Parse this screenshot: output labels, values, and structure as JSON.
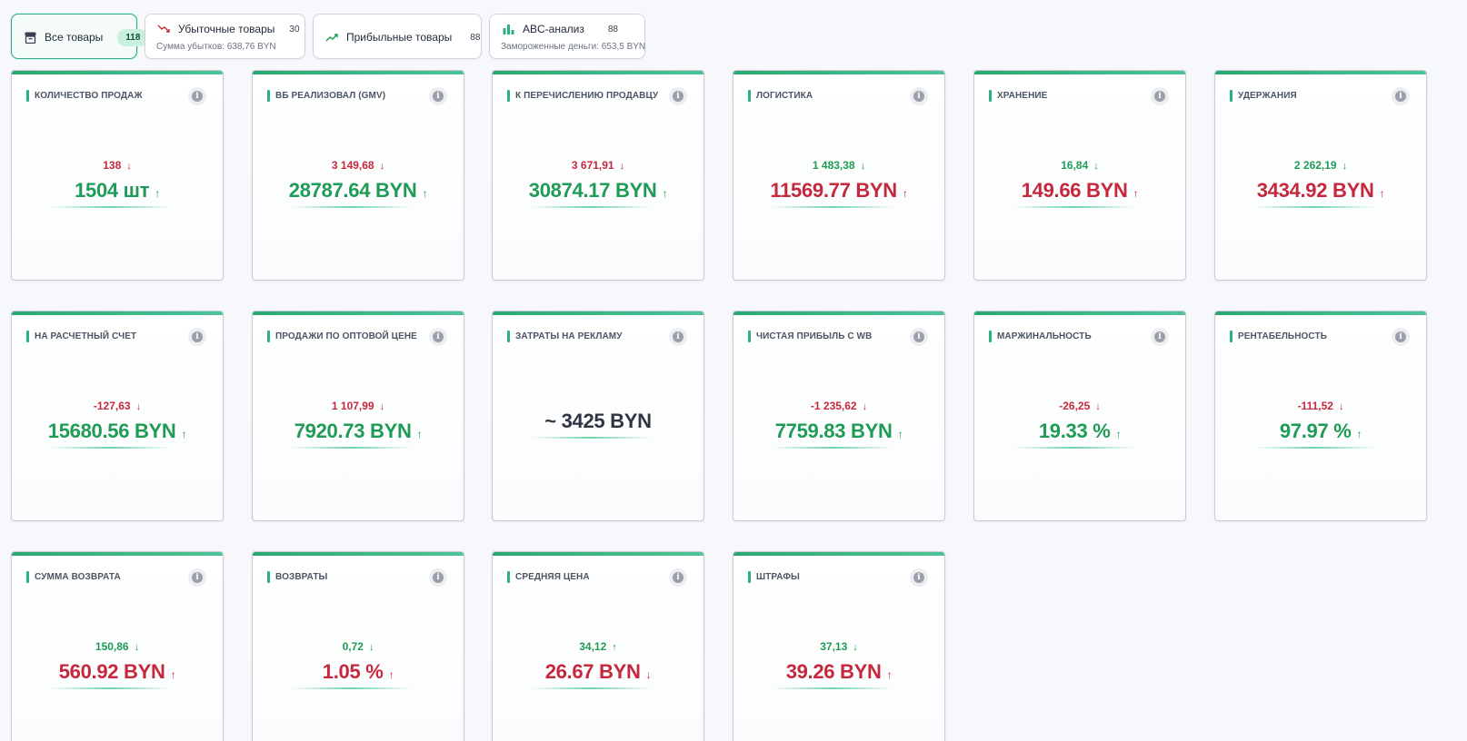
{
  "tabs": [
    {
      "label": "Все товары",
      "count": "118",
      "icon": "archive-icon",
      "active": true
    },
    {
      "label": "Убыточные товары",
      "count": "30",
      "sub": "Сумма убытков: 638,76 BYN",
      "icon": "trend-down-icon"
    },
    {
      "label": "Прибыльные товары",
      "count": "88",
      "icon": "trend-up-icon"
    },
    {
      "label": "ABC-анализ",
      "count": "88",
      "sub": "Замороженные деньги: 653,5 BYN",
      "icon": "bar-chart-icon"
    }
  ],
  "colors": {
    "accent": "#2bb07f",
    "positive": "#1e9b55",
    "negative": "#c5283d",
    "neutral": "#2f3542"
  },
  "cards": [
    {
      "title": "КОЛИЧЕСТВО ПРОДАЖ",
      "delta": "138",
      "delta_dir": "down",
      "delta_color": "red",
      "value": "1504 шт",
      "value_dir": "up",
      "value_color": "green"
    },
    {
      "title": "ВБ РЕАЛИЗОВАЛ (GMV)",
      "delta": "3 149,68",
      "delta_dir": "down",
      "delta_color": "red",
      "value": "28787.64 BYN",
      "value_dir": "up",
      "value_color": "green"
    },
    {
      "title": "К ПЕРЕЧИСЛЕНИЮ ПРОДАВЦУ",
      "delta": "3 671,91",
      "delta_dir": "down",
      "delta_color": "red",
      "value": "30874.17 BYN",
      "value_dir": "up",
      "value_color": "green"
    },
    {
      "title": "ЛОГИСТИКА",
      "delta": "1 483,38",
      "delta_dir": "down",
      "delta_color": "green",
      "value": "11569.77 BYN",
      "value_dir": "up",
      "value_color": "red"
    },
    {
      "title": "ХРАНЕНИЕ",
      "delta": "16,84",
      "delta_dir": "down",
      "delta_color": "green",
      "value": "149.66 BYN",
      "value_dir": "up",
      "value_color": "red"
    },
    {
      "title": "УДЕРЖАНИЯ",
      "delta": "2 262,19",
      "delta_dir": "down",
      "delta_color": "green",
      "value": "3434.92 BYN",
      "value_dir": "up",
      "value_color": "red"
    },
    {
      "title": "НА РАСЧЕТНЫЙ СЧЕТ",
      "delta": "-127,63",
      "delta_dir": "down",
      "delta_color": "red",
      "value": "15680.56 BYN",
      "value_dir": "up",
      "value_color": "green"
    },
    {
      "title": "ПРОДАЖИ ПО ОПТОВОЙ ЦЕНЕ",
      "delta": "1 107,99",
      "delta_dir": "down",
      "delta_color": "red",
      "value": "7920.73 BYN",
      "value_dir": "up",
      "value_color": "green"
    },
    {
      "title": "ЗАТРАТЫ НА РЕКЛАМУ",
      "delta": "",
      "delta_dir": "",
      "delta_color": "",
      "value": "~ 3425 BYN",
      "value_dir": "",
      "value_color": "dark"
    },
    {
      "title": "ЧИСТАЯ ПРИБЫЛЬ С WB",
      "delta": "-1 235,62",
      "delta_dir": "down",
      "delta_color": "red",
      "value": "7759.83 BYN",
      "value_dir": "up",
      "value_color": "green"
    },
    {
      "title": "МАРЖИНАЛЬНОСТЬ",
      "delta": "-26,25",
      "delta_dir": "down",
      "delta_color": "red",
      "value": "19.33 %",
      "value_dir": "up",
      "value_color": "green"
    },
    {
      "title": "РЕНТАБЕЛЬНОСТЬ",
      "delta": "-111,52",
      "delta_dir": "down",
      "delta_color": "red",
      "value": "97.97 %",
      "value_dir": "up",
      "value_color": "green"
    },
    {
      "title": "СУММА ВОЗВРАТА",
      "delta": "150,86",
      "delta_dir": "down",
      "delta_color": "green",
      "value": "560.92 BYN",
      "value_dir": "up",
      "value_color": "red"
    },
    {
      "title": "ВОЗВРАТЫ",
      "delta": "0,72",
      "delta_dir": "down",
      "delta_color": "green",
      "value": "1.05 %",
      "value_dir": "up",
      "value_color": "red"
    },
    {
      "title": "СРЕДНЯЯ ЦЕНА",
      "delta": "34,12",
      "delta_dir": "up",
      "delta_color": "green",
      "value": "26.67 BYN",
      "value_dir": "down",
      "value_color": "red"
    },
    {
      "title": "ШТРАФЫ",
      "delta": "37,13",
      "delta_dir": "down",
      "delta_color": "green",
      "value": "39.26 BYN",
      "value_dir": "up",
      "value_color": "red"
    }
  ]
}
